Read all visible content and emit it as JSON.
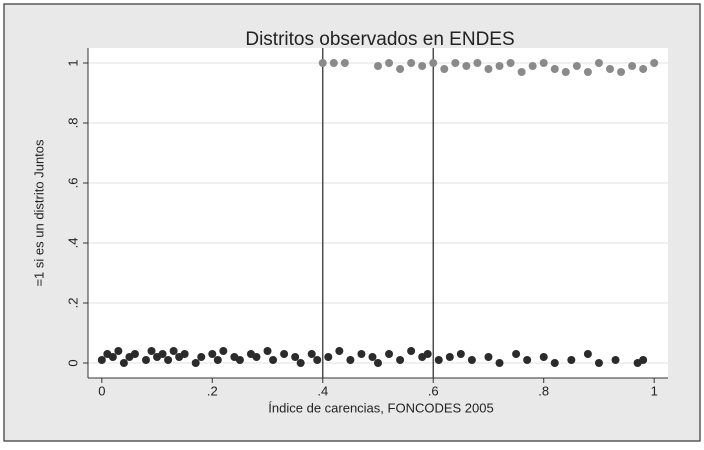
{
  "chart_data": {
    "type": "scatter",
    "title": "Distritos observados en ENDES",
    "x_label": "Índice de carencias, FONCODES 2005",
    "y_label": "=1 si es un distrito Juntos",
    "xlim": [
      -0.025,
      1.025
    ],
    "ylim": [
      -0.05,
      1.05
    ],
    "xticks": [
      0,
      {
        "value": 0.2,
        "label": ".2"
      },
      {
        "value": 0.4,
        "label": ".4"
      },
      {
        "value": 0.6,
        "label": ".6"
      },
      {
        "value": 0.8,
        "label": ".8"
      },
      1
    ],
    "yticks": [
      0,
      {
        "value": 0.2,
        "label": ".2"
      },
      {
        "value": 0.4,
        "label": ".4"
      },
      {
        "value": 0.6,
        "label": ".6"
      },
      {
        "value": 0.8,
        "label": ".8"
      },
      1
    ],
    "xlines": [
      0.4,
      0.6
    ],
    "grid": true,
    "series": [
      {
        "color": "#2b2b2b",
        "x": [
          0,
          0.01,
          0.02,
          0.03,
          0.04,
          0.05,
          0.06,
          0.08,
          0.09,
          0.1,
          0.11,
          0.12,
          0.13,
          0.14,
          0.15,
          0.17,
          0.18,
          0.2,
          0.21,
          0.22,
          0.24,
          0.25,
          0.27,
          0.28,
          0.3,
          0.31,
          0.33,
          0.35,
          0.36,
          0.38,
          0.39,
          0.41,
          0.43,
          0.45,
          0.47,
          0.49,
          0.5,
          0.52,
          0.54,
          0.56,
          0.58,
          0.59,
          0.61,
          0.63,
          0.65,
          0.67,
          0.7,
          0.72,
          0.75,
          0.77,
          0.8,
          0.82,
          0.85,
          0.88,
          0.9,
          0.93,
          0.97,
          0.98
        ],
        "values": [
          0.01,
          0.03,
          0.02,
          0.04,
          0,
          0.02,
          0.03,
          0.01,
          0.04,
          0.02,
          0.03,
          0.01,
          0.04,
          0.02,
          0.03,
          0,
          0.02,
          0.03,
          0.01,
          0.04,
          0.02,
          0.01,
          0.03,
          0.02,
          0.04,
          0.01,
          0.03,
          0.02,
          0,
          0.03,
          0.01,
          0.02,
          0.04,
          0.01,
          0.03,
          0.02,
          0,
          0.03,
          0.01,
          0.04,
          0.02,
          0.03,
          0.01,
          0.02,
          0.03,
          0.01,
          0.02,
          0,
          0.03,
          0.01,
          0.02,
          0,
          0.01,
          0.03,
          0,
          0.01,
          0,
          0.01
        ]
      },
      {
        "color": "#8a8a8a",
        "x": [
          0.4,
          0.42,
          0.44,
          0.5,
          0.52,
          0.54,
          0.56,
          0.58,
          0.6,
          0.62,
          0.64,
          0.66,
          0.68,
          0.7,
          0.72,
          0.74,
          0.76,
          0.78,
          0.8,
          0.82,
          0.84,
          0.86,
          0.88,
          0.9,
          0.92,
          0.94,
          0.96,
          0.98,
          1.0
        ],
        "values": [
          1,
          1,
          1,
          0.99,
          1,
          0.98,
          1,
          0.99,
          1,
          0.98,
          1,
          0.99,
          1,
          0.98,
          0.99,
          1,
          0.97,
          0.99,
          1,
          0.98,
          0.97,
          0.99,
          0.97,
          1,
          0.98,
          0.97,
          0.99,
          0.98,
          1
        ]
      }
    ]
  }
}
